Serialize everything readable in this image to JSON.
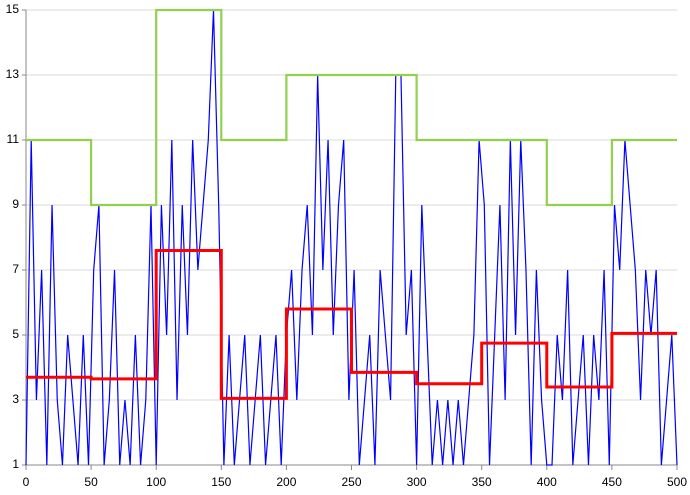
{
  "chart_data": {
    "type": "line",
    "xlim": [
      0,
      500
    ],
    "xticks": [
      0,
      50,
      100,
      150,
      200,
      250,
      300,
      350,
      400,
      450,
      500
    ],
    "ylim": [
      1,
      15
    ],
    "yticks": [
      1,
      3,
      5,
      7,
      9,
      11,
      13,
      15
    ],
    "grid": true,
    "series": [
      {
        "color": "#0000ff",
        "linewidth": 1.2,
        "x": [
          0,
          4,
          8,
          12,
          16,
          20,
          24,
          28,
          32,
          36,
          40,
          44,
          48,
          52,
          56,
          60,
          64,
          68,
          72,
          76,
          80,
          84,
          88,
          92,
          96,
          100,
          104,
          108,
          112,
          116,
          120,
          124,
          128,
          132,
          136,
          140,
          144,
          148,
          152,
          156,
          160,
          164,
          168,
          172,
          176,
          180,
          184,
          188,
          192,
          196,
          200,
          204,
          208,
          212,
          216,
          220,
          224,
          228,
          232,
          236,
          240,
          244,
          248,
          252,
          256,
          260,
          264,
          268,
          272,
          276,
          280,
          284,
          288,
          292,
          296,
          300,
          304,
          308,
          312,
          316,
          320,
          324,
          328,
          332,
          336,
          340,
          344,
          348,
          352,
          356,
          360,
          364,
          368,
          372,
          376,
          380,
          384,
          388,
          392,
          396,
          400,
          404,
          408,
          412,
          416,
          420,
          424,
          428,
          432,
          436,
          440,
          444,
          448,
          452,
          456,
          460,
          464,
          468,
          472,
          476,
          480,
          484,
          488,
          492,
          496,
          500
        ],
        "values": [
          1,
          11,
          3,
          7,
          1,
          9,
          3,
          1,
          5,
          3,
          1,
          5,
          1,
          7,
          9,
          1,
          3,
          7,
          1,
          3,
          1,
          5,
          1,
          3,
          9,
          1,
          9,
          5,
          11,
          3,
          9,
          5,
          11,
          7,
          9,
          11,
          15,
          9,
          1,
          5,
          1,
          3,
          5,
          1,
          3,
          5,
          1,
          3,
          5,
          1,
          5,
          7,
          3,
          7,
          9,
          5,
          13,
          7,
          11,
          5,
          9,
          11,
          3,
          7,
          1,
          3,
          5,
          1,
          7,
          5,
          3,
          13,
          13,
          5,
          7,
          1,
          9,
          5,
          1,
          3,
          1,
          3,
          1,
          3,
          1,
          3,
          5,
          11,
          9,
          1,
          5,
          9,
          3,
          11,
          5,
          11,
          7,
          1,
          7,
          3,
          1,
          1,
          5,
          3,
          7,
          1,
          3,
          5,
          1,
          5,
          3,
          7,
          1,
          9,
          7,
          11,
          9,
          7,
          3,
          7,
          5,
          7,
          1,
          3,
          5,
          1
        ]
      },
      {
        "color": "#92d050",
        "linewidth": 2.2,
        "x": [
          0,
          50,
          50,
          100,
          100,
          150,
          150,
          200,
          200,
          250,
          250,
          300,
          300,
          350,
          350,
          400,
          400,
          450,
          450,
          500
        ],
        "values": [
          11,
          11,
          9,
          9,
          15,
          15,
          11,
          11,
          13,
          13,
          13,
          13,
          11,
          11,
          11,
          11,
          9,
          9,
          11,
          11
        ]
      },
      {
        "color": "#ff0000",
        "linewidth": 3,
        "x": [
          0,
          50,
          50,
          100,
          100,
          150,
          150,
          200,
          200,
          250,
          250,
          300,
          300,
          350,
          350,
          400,
          400,
          450,
          450,
          500
        ],
        "values": [
          3.7,
          3.7,
          3.65,
          3.65,
          7.6,
          7.6,
          3.05,
          3.05,
          5.8,
          5.8,
          3.85,
          3.85,
          3.5,
          3.5,
          4.75,
          4.75,
          3.4,
          3.4,
          5.05,
          5.05
        ]
      }
    ]
  }
}
